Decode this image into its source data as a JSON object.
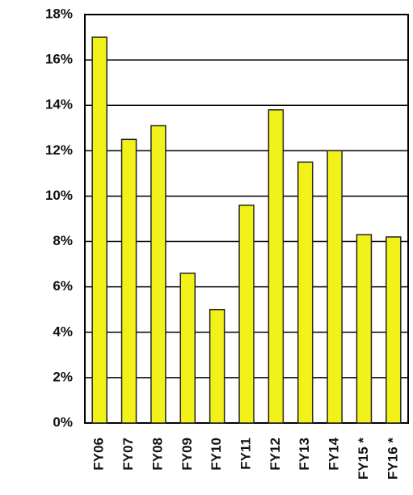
{
  "chart_data": {
    "type": "bar",
    "categories": [
      "FY06",
      "FY07",
      "FY08",
      "FY09",
      "FY10",
      "FY11",
      "FY12",
      "FY13",
      "FY14",
      "FY15 *",
      "FY16 *"
    ],
    "values": [
      17.0,
      12.5,
      13.1,
      6.6,
      5.0,
      9.6,
      13.8,
      11.5,
      12.0,
      8.3,
      8.2
    ],
    "color": "#f2f21a",
    "ylim": [
      0,
      18
    ],
    "yticks": [
      {
        "value": 0,
        "label": "0%"
      },
      {
        "value": 2,
        "label": "2%"
      },
      {
        "value": 4,
        "label": "4%"
      },
      {
        "value": 6,
        "label": "6%"
      },
      {
        "value": 8,
        "label": "8%"
      },
      {
        "value": 10,
        "label": "10%"
      },
      {
        "value": 12,
        "label": "12%"
      },
      {
        "value": 14,
        "label": "14%"
      },
      {
        "value": 16,
        "label": "16%"
      },
      {
        "value": 18,
        "label": "18%"
      }
    ],
    "grid": true
  }
}
